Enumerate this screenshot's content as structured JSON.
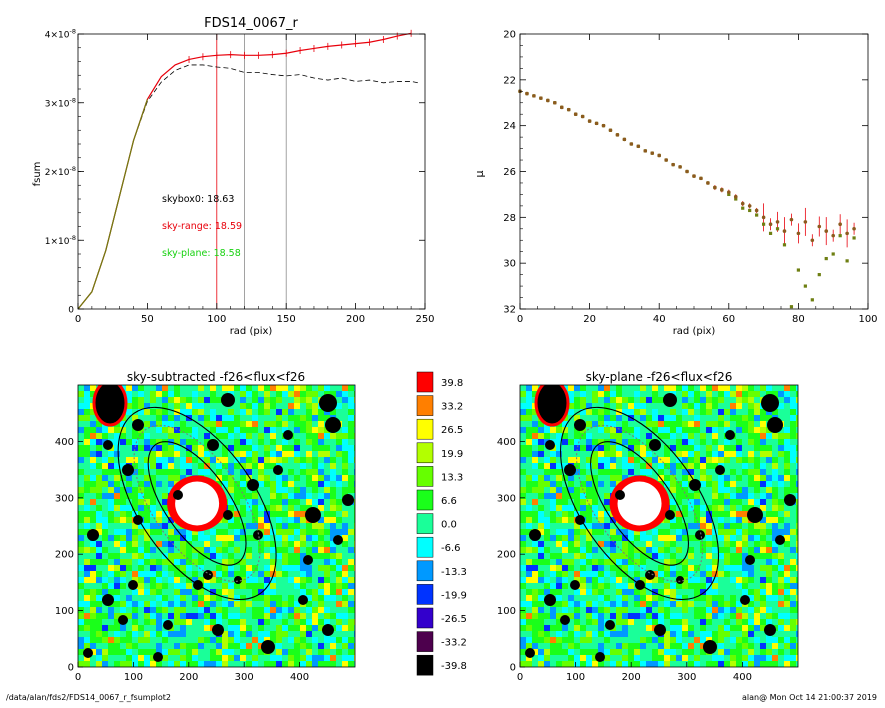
{
  "page": {
    "footer_left": "/data/alan/fds2/FDS14_0067_r_fsumplot2",
    "footer_right": "alan@  Mon Oct 14 21:00:37 2019"
  },
  "colors": {
    "red": "#e8000b",
    "green": "#16d10f",
    "olive": "#6e7f12",
    "brown": "#8c5a1e",
    "gray": "#8c8c8c"
  },
  "chart_data": [
    {
      "type": "line",
      "title": "FDS14_0067_r",
      "xlabel": "rad (pix)",
      "ylabel": "fsum",
      "xlim": [
        0,
        250
      ],
      "ylim": [
        0,
        4e-08
      ],
      "xticks": [
        "0",
        "50",
        "100",
        "150",
        "200",
        "250"
      ],
      "yticks": [
        {
          "base": "0",
          "exp": ""
        },
        {
          "base": "1×10",
          "exp": "-8"
        },
        {
          "base": "2×10",
          "exp": "-8"
        },
        {
          "base": "3×10",
          "exp": "-8"
        },
        {
          "base": "4×10",
          "exp": "-8"
        }
      ],
      "annotations": [
        {
          "text": "skybox0: 18.63",
          "color": "black"
        },
        {
          "text": "sky-range: 18.59",
          "color": "red"
        },
        {
          "text": "sky-plane: 18.58",
          "color": "green"
        }
      ],
      "vlines": [
        {
          "x": 100,
          "color": "red"
        },
        {
          "x": 120,
          "color": "gray"
        },
        {
          "x": 150,
          "color": "gray"
        }
      ],
      "series": [
        {
          "color": "red",
          "style": "line with error bars",
          "x": [
            0,
            10,
            20,
            30,
            40,
            50,
            60,
            70,
            80,
            90,
            100,
            110,
            120,
            130,
            140,
            150,
            160,
            170,
            180,
            190,
            200,
            210,
            220,
            230,
            240
          ],
          "y": [
            0,
            2.5e-09,
            8.5e-09,
            1.65e-08,
            2.45e-08,
            3.05e-08,
            3.38e-08,
            3.55e-08,
            3.63e-08,
            3.67e-08,
            3.69e-08,
            3.7e-08,
            3.69e-08,
            3.69e-08,
            3.7e-08,
            3.72e-08,
            3.76e-08,
            3.79e-08,
            3.82e-08,
            3.84e-08,
            3.86e-08,
            3.88e-08,
            3.92e-08,
            3.97e-08,
            4.01e-08
          ]
        },
        {
          "color": "black",
          "style": "dashed",
          "x": [
            0,
            10,
            20,
            30,
            40,
            50,
            60,
            70,
            80,
            90,
            100,
            110,
            120,
            130,
            140,
            150,
            160,
            170,
            180,
            190,
            200,
            210,
            220,
            230,
            240,
            245
          ],
          "y": [
            0,
            2.5e-09,
            8.5e-09,
            1.65e-08,
            2.45e-08,
            3.02e-08,
            3.3e-08,
            3.47e-08,
            3.55e-08,
            3.55e-08,
            3.52e-08,
            3.5e-08,
            3.44e-08,
            3.44e-08,
            3.41e-08,
            3.39e-08,
            3.41e-08,
            3.36e-08,
            3.33e-08,
            3.36e-08,
            3.31e-08,
            3.33e-08,
            3.29e-08,
            3.31e-08,
            3.31e-08,
            3.29e-08
          ]
        }
      ]
    },
    {
      "type": "scatter",
      "title": "",
      "xlabel": "rad (pix)",
      "ylabel": "μ",
      "xlim": [
        0,
        100
      ],
      "ylim": [
        32,
        20
      ],
      "xticks": [
        "0",
        "20",
        "40",
        "60",
        "80",
        "100"
      ],
      "yticks": [
        "20",
        "22",
        "24",
        "26",
        "28",
        "30",
        "32"
      ],
      "series": [
        {
          "color": "brown",
          "marker": "point with error bar",
          "x": [
            0,
            2,
            4,
            6,
            8,
            10,
            12,
            14,
            16,
            18,
            20,
            22,
            24,
            26,
            28,
            30,
            32,
            34,
            36,
            38,
            40,
            42,
            44,
            46,
            48,
            50,
            52,
            54,
            56,
            58,
            60,
            62,
            64,
            66,
            68,
            70,
            72,
            74,
            76,
            78,
            80,
            82,
            84,
            86,
            88,
            90,
            92,
            94,
            96
          ],
          "y": [
            22.5,
            22.6,
            22.7,
            22.8,
            22.9,
            23.0,
            23.2,
            23.3,
            23.5,
            23.6,
            23.8,
            23.9,
            24.0,
            24.2,
            24.4,
            24.6,
            24.8,
            24.9,
            25.1,
            25.2,
            25.3,
            25.5,
            25.7,
            25.8,
            26.0,
            26.2,
            26.3,
            26.5,
            26.7,
            26.8,
            26.9,
            27.1,
            27.4,
            27.5,
            27.7,
            28.0,
            28.3,
            28.2,
            28.6,
            28.1,
            28.7,
            28.2,
            29.0,
            28.4,
            28.6,
            28.8,
            28.3,
            28.7,
            28.5
          ]
        },
        {
          "color": "green",
          "marker": "square",
          "x": [
            0,
            2,
            4,
            6,
            8,
            10,
            12,
            14,
            16,
            18,
            20,
            22,
            24,
            26,
            28,
            30,
            32,
            34,
            36,
            38,
            40,
            42,
            44,
            46,
            48,
            50,
            52,
            54,
            56,
            58,
            60,
            62,
            64,
            66,
            68,
            70,
            72,
            74,
            76,
            78,
            80,
            82,
            84,
            86,
            88,
            90,
            92,
            94,
            96
          ],
          "y": [
            22.5,
            22.6,
            22.7,
            22.8,
            22.9,
            23.0,
            23.2,
            23.3,
            23.5,
            23.6,
            23.8,
            23.9,
            24.0,
            24.2,
            24.4,
            24.6,
            24.8,
            24.9,
            25.1,
            25.2,
            25.3,
            25.5,
            25.7,
            25.8,
            26.0,
            26.2,
            26.3,
            26.5,
            26.7,
            26.8,
            27.0,
            27.2,
            27.6,
            27.7,
            27.9,
            28.3,
            28.7,
            28.5,
            29.2,
            31.9,
            30.3,
            31.0,
            31.6,
            30.5,
            29.8,
            29.6,
            28.8,
            29.9,
            28.9
          ]
        }
      ]
    },
    {
      "type": "heatmap",
      "title": "sky-subtracted -f26<flux<f26",
      "xlim": [
        0,
        500
      ],
      "ylim": [
        0,
        500
      ],
      "xticks": [
        "0",
        "100",
        "200",
        "300",
        "400"
      ],
      "yticks": [
        "0",
        "100",
        "200",
        "300",
        "400"
      ]
    },
    {
      "type": "heatmap",
      "title": "sky-plane -f26<flux<f26",
      "xlim": [
        0,
        500
      ],
      "ylim": [
        0,
        500
      ],
      "xticks": [
        "0",
        "100",
        "200",
        "300",
        "400"
      ],
      "yticks": [
        "0",
        "100",
        "200",
        "300",
        "400"
      ]
    },
    {
      "type": "table",
      "title": "",
      "colorbar": [
        {
          "value": "39.8",
          "color": "#ff0000"
        },
        {
          "value": "33.2",
          "color": "#ff7f00"
        },
        {
          "value": "26.5",
          "color": "#ffff00"
        },
        {
          "value": "19.9",
          "color": "#b3ff00"
        },
        {
          "value": "13.3",
          "color": "#66ff00"
        },
        {
          "value": "6.6",
          "color": "#1aff1a"
        },
        {
          "value": "0.0",
          "color": "#1aff99"
        },
        {
          "value": "-6.6",
          "color": "#00ffff"
        },
        {
          "value": "-13.3",
          "color": "#0099ff"
        },
        {
          "value": "-19.9",
          "color": "#0033ff"
        },
        {
          "value": "-26.5",
          "color": "#3300cc"
        },
        {
          "value": "-33.2",
          "color": "#4d004d"
        },
        {
          "value": "-39.8",
          "color": "#000000"
        }
      ]
    }
  ]
}
